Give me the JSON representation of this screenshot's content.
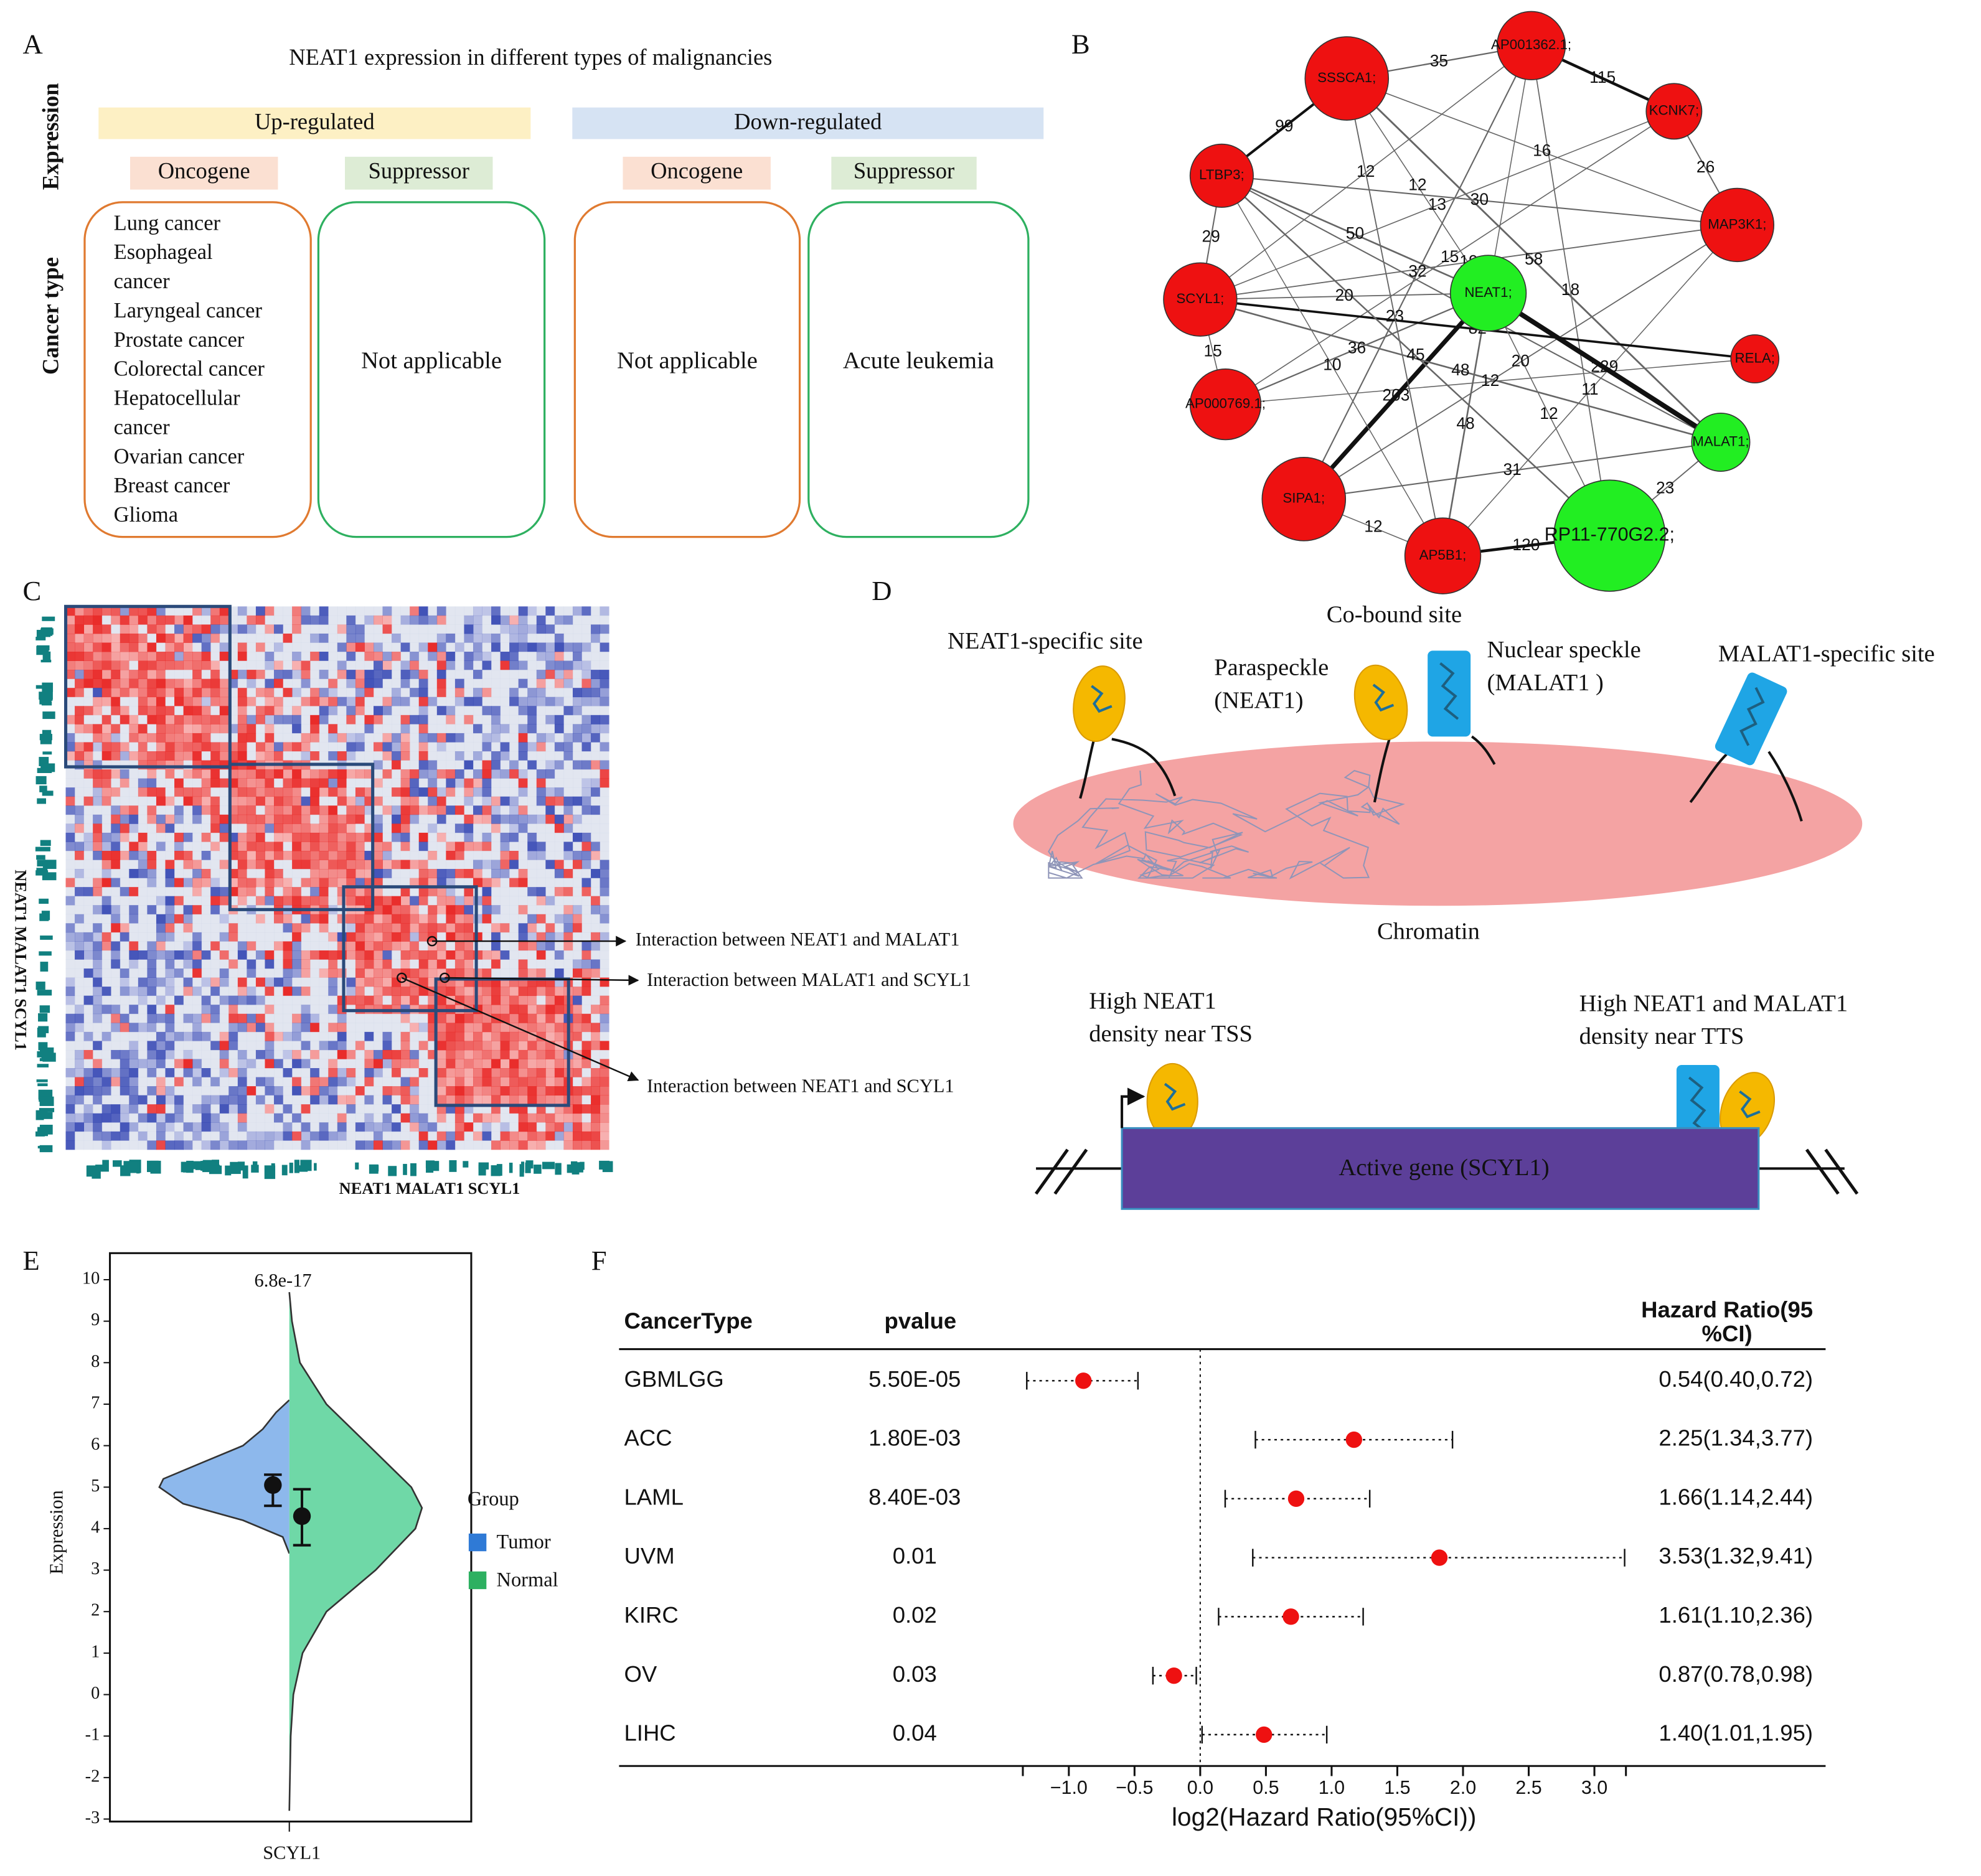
{
  "panel_labels": [
    "A",
    "B",
    "C",
    "D",
    "E",
    "F"
  ],
  "panel_a": {
    "title": "NEAT1 expression in different types of malignancies",
    "row_labels": [
      "Expression",
      "Cancer type"
    ],
    "groups": [
      {
        "label": "Up-regulated",
        "subgroups": [
          {
            "label": "Oncogene",
            "items": [
              "Lung cancer",
              "Esophageal",
              "cancer",
              "Laryngeal cancer",
              "Prostate cancer",
              "Colorectal cancer",
              "Hepatocellular",
              "cancer",
              "Ovarian cancer",
              "Breast cancer",
              "Glioma"
            ]
          },
          {
            "label": "Suppressor",
            "items": [
              "Not applicable"
            ]
          }
        ]
      },
      {
        "label": "Down-regulated",
        "subgroups": [
          {
            "label": "Oncogene",
            "items": [
              "Not applicable"
            ]
          },
          {
            "label": "Suppressor",
            "items": [
              "Acute leukemia"
            ]
          }
        ]
      }
    ]
  },
  "panel_b": {
    "nodes": [
      {
        "label": "SSSCA1;",
        "color": "#ee1111",
        "size": 33
      },
      {
        "label": "AP001362.1;",
        "color": "#ee1111",
        "size": 27
      },
      {
        "label": "KCNK7;",
        "color": "#ee1111",
        "size": 22
      },
      {
        "label": "LTBP3;",
        "color": "#ee1111",
        "size": 25
      },
      {
        "label": "MAP3K1;",
        "color": "#ee1111",
        "size": 29
      },
      {
        "label": "SCYL1;",
        "color": "#ee1111",
        "size": 29
      },
      {
        "label": "NEAT1;",
        "color": "#22ee22",
        "size": 30
      },
      {
        "label": "RELA;",
        "color": "#ee1111",
        "size": 19
      },
      {
        "label": "AP000769.1;",
        "color": "#ee1111",
        "size": 28
      },
      {
        "label": "MALAT1;",
        "color": "#22ee22",
        "size": 23
      },
      {
        "label": "SIPA1;",
        "color": "#ee1111",
        "size": 33
      },
      {
        "label": "RP11-770G2.2;",
        "color": "#22ee22",
        "size": 44
      },
      {
        "label": "AP5B1;",
        "color": "#ee1111",
        "size": 30
      }
    ],
    "edges": [
      {
        "source": "SSSCA1;",
        "target": "AP001362.1;",
        "weight": 35
      },
      {
        "source": "AP001362.1;",
        "target": "KCNK7;",
        "weight": 115
      },
      {
        "source": "SSSCA1;",
        "target": "LTBP3;",
        "weight": 99
      },
      {
        "source": "SSSCA1;",
        "target": "MAP3K1;",
        "weight": 16
      },
      {
        "source": "AP001362.1;",
        "target": "SIPA1;",
        "weight": 32
      },
      {
        "source": "SSSCA1;",
        "target": "NEAT1;",
        "weight": 12
      },
      {
        "source": "LTBP3;",
        "target": "MAP3K1;",
        "weight": 30
      },
      {
        "source": "KCNK7;",
        "target": "AP000769.1;",
        "weight": 15
      },
      {
        "source": "KCNK7;",
        "target": "MAP3K1;",
        "weight": 26
      },
      {
        "source": "LTBP3;",
        "target": "NEAT1;",
        "weight": 50
      },
      {
        "source": "SSSCA1;",
        "target": "MALAT1;",
        "weight": 58
      },
      {
        "source": "AP001362.1;",
        "target": "AP5B1;",
        "weight": 12
      },
      {
        "source": "AP001362.1;",
        "target": "SCYL1;",
        "weight": 12
      },
      {
        "source": "AP001362.1;",
        "target": "RP11-770G2.2;",
        "weight": 18
      },
      {
        "source": "SCYL1;",
        "target": "KCNK7;",
        "weight": 13
      },
      {
        "source": "LTBP3;",
        "target": "SCYL1;",
        "weight": 29
      },
      {
        "source": "LTBP3;",
        "target": "MALAT1;",
        "weight": 30
      },
      {
        "source": "SCYL1;",
        "target": "MAP3K1;",
        "weight": 19
      },
      {
        "source": "MAP3K1;",
        "target": "AP5B1;",
        "weight": 11
      },
      {
        "source": "NEAT1;",
        "target": "AP000769.1;",
        "weight": 36
      },
      {
        "source": "MAP3K1;",
        "target": "SIPA1;",
        "weight": 20
      },
      {
        "source": "SCYL1;",
        "target": "NEAT1;",
        "weight": 20
      },
      {
        "source": "SCYL1;",
        "target": "RELA;",
        "weight": 82
      },
      {
        "source": "NEAT1;",
        "target": "RP11-770G2.2;",
        "weight": 12
      },
      {
        "source": "AP000769.1;",
        "target": "RELA;",
        "weight": 12
      },
      {
        "source": "NEAT1;",
        "target": "SIPA1;",
        "weight": 203
      },
      {
        "source": "SCYL1;",
        "target": "MALAT1;",
        "weight": 48
      },
      {
        "source": "NEAT1;",
        "target": "AP5B1;",
        "weight": 48
      },
      {
        "source": "NEAT1;",
        "target": "MALAT1;",
        "weight": 229
      },
      {
        "source": "SCYL1;",
        "target": "AP000769.1;",
        "weight": 15
      },
      {
        "source": "SSSCA1;",
        "target": "AP5B1;",
        "weight": 23
      },
      {
        "source": "LTBP3;",
        "target": "RP11-770G2.2;",
        "weight": 45
      },
      {
        "source": "LTBP3;",
        "target": "AP5B1;",
        "weight": 10
      },
      {
        "source": "SIPA1;",
        "target": "MALAT1;",
        "weight": 31
      },
      {
        "source": "MALAT1;",
        "target": "RP11-770G2.2;",
        "weight": 23
      },
      {
        "source": "SIPA1;",
        "target": "AP5B1;",
        "weight": 12
      },
      {
        "source": "AP5B1;",
        "target": "RP11-770G2.2;",
        "weight": 120
      }
    ]
  },
  "panel_c": {
    "axis_label": "NEAT1 MALAT1 SCYL1",
    "annotations": [
      "Interaction between NEAT1 and MALAT1",
      "Interaction between MALAT1 and SCYL1",
      "Interaction between NEAT1 and SCYL1"
    ]
  },
  "panel_d": {
    "labels": [
      [
        "NEAT1-specific site"
      ],
      [
        "Paraspeckle",
        "(NEAT1)"
      ],
      [
        "Co-bound site"
      ],
      [
        "Nuclear speckle",
        "(MALAT1 )"
      ],
      [
        "MALAT1-specific site"
      ],
      [
        "Chromatin"
      ],
      [
        "High NEAT1",
        "density near TSS"
      ],
      [
        "High NEAT1 and MALAT1",
        "density near TTS"
      ],
      [
        "Active gene (SCYL1)"
      ]
    ]
  },
  "chart_data": [
    {
      "type": "violin",
      "title": "6.8e-17",
      "y_label": "Expression",
      "categories": [
        "SCYL1"
      ],
      "legend_title": "Group",
      "ylim": [
        -3.06,
        10.64
      ],
      "yticks": [
        -3,
        -2,
        -1,
        0,
        1,
        2,
        3,
        4,
        5,
        6,
        7,
        8,
        9,
        10
      ],
      "series": [
        {
          "name": "Tumor",
          "color": "#2f7ad6",
          "fill": "#8db8ec",
          "mean": 5.05,
          "error": [
            4.55,
            5.3
          ],
          "density_y": [
            3.4,
            3.8,
            4.2,
            4.6,
            5.0,
            5.2,
            5.6,
            6.0,
            6.4,
            6.8,
            7.1
          ],
          "density": [
            0,
            0.05,
            0.35,
            0.8,
            0.98,
            0.95,
            0.65,
            0.35,
            0.2,
            0.1,
            0
          ]
        },
        {
          "name": "Normal",
          "color": "#2db061",
          "fill": "#6fd8a7",
          "mean": 4.3,
          "error": [
            3.6,
            4.95
          ],
          "density_y": [
            -2.8,
            -1,
            0,
            1,
            2,
            3,
            4,
            4.5,
            5,
            6,
            7,
            8,
            9,
            9.7
          ],
          "density": [
            0,
            0.01,
            0.03,
            0.1,
            0.28,
            0.65,
            0.95,
            1.0,
            0.92,
            0.6,
            0.28,
            0.08,
            0.02,
            0
          ]
        }
      ]
    },
    {
      "type": "forest",
      "headers": [
        "CancerType",
        "pvalue"
      ],
      "hr_header": [
        "Hazard Ratio(95",
        "%CI)"
      ],
      "categories": [
        "GBMLGG",
        "ACC",
        "LAML",
        "UVM",
        "KIRC",
        "OV",
        "LIHC"
      ],
      "pvalues": [
        "5.50E-05",
        "1.80E-03",
        "8.40E-03",
        "0.01",
        "0.02",
        "0.03",
        "0.04"
      ],
      "hr_labels": [
        "0.54(0.40,0.72)",
        "2.25(1.34,3.77)",
        "1.66(1.14,2.44)",
        "3.53(1.32,9.41)",
        "1.61(1.10,2.36)",
        "0.87(0.78,0.98)",
        "1.40(1.01,1.95)"
      ],
      "values": [
        -0.889,
        1.17,
        0.73,
        1.82,
        0.69,
        -0.2,
        0.485
      ],
      "lower": [
        -1.32,
        0.42,
        0.19,
        0.4,
        0.14,
        -0.36,
        0.014
      ],
      "upper": [
        -0.474,
        1.92,
        1.29,
        3.23,
        1.24,
        -0.03,
        0.963
      ],
      "color": "#ee1111",
      "x_label": "log2(Hazard Ratio(95%CI))",
      "xlim": [
        -1.35,
        3.24
      ],
      "xticks": [
        {
          "value": -1,
          "label": "−1.0"
        },
        {
          "value": -0.5,
          "label": "−0.5"
        },
        {
          "value": 0,
          "label": "0.0"
        },
        0.5,
        {
          "value": 1,
          "label": "1.0"
        },
        1.5,
        {
          "value": 2,
          "label": "2.0"
        },
        2.5,
        {
          "value": 3,
          "label": "3.0"
        }
      ]
    }
  ]
}
